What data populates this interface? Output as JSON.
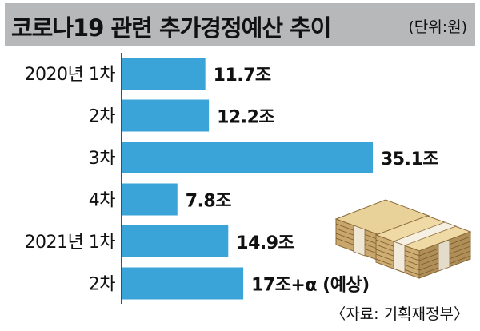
{
  "header": {
    "title": "코로나19 관련 추가경정예산 추이",
    "unit": "(단위:원)"
  },
  "source": "〈자료: 기획재정부〉",
  "colors": {
    "bar": "#3aa3d7",
    "header_bg": "#b7b8ba",
    "axis": "#111111"
  },
  "chart_data": {
    "type": "bar",
    "orientation": "horizontal",
    "title": "코로나19 관련 추가경정예산 추이",
    "unit_label": "(단위:원)",
    "categories": [
      "2020년 1차",
      "2차",
      "3차",
      "4차",
      "2021년 1차",
      "2차"
    ],
    "values": [
      11.7,
      12.2,
      35.1,
      7.8,
      14.9,
      17
    ],
    "data_labels": [
      "11.7조",
      "12.2조",
      "35.1조",
      "7.8조",
      "14.9조",
      "17조+α (예상)"
    ],
    "xlim": [
      0,
      35.1
    ],
    "grid": false,
    "legend": "none"
  }
}
